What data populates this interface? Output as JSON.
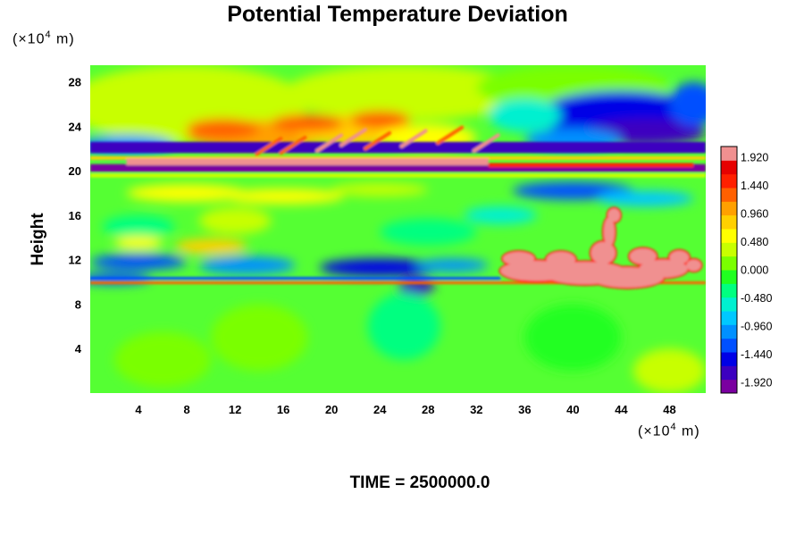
{
  "chart_data": {
    "type": "heatmap",
    "title": "Potential Temperature Deviation",
    "ylabel": "Height",
    "xlabel": "",
    "x_unit": {
      "prefix": "(×10",
      "exp": "4",
      "suffix": " m)"
    },
    "y_unit": {
      "prefix": "(×10",
      "exp": "4",
      "suffix": " m)"
    },
    "xlim": [
      0,
      51
    ],
    "ylim": [
      0,
      29.5
    ],
    "x_ticks": [
      4,
      8,
      12,
      16,
      20,
      24,
      28,
      32,
      36,
      40,
      44,
      48
    ],
    "y_ticks": [
      4,
      8,
      12,
      16,
      20,
      24,
      28
    ],
    "colorbar": {
      "range": [
        -2.1,
        2.1
      ],
      "tick_values": [
        1.92,
        1.44,
        0.96,
        0.48,
        0.0,
        -0.48,
        -0.96,
        -1.44,
        -1.92
      ],
      "tick_labels": [
        "1.920",
        "1.440",
        "0.960",
        "0.480",
        "0.000",
        "-0.480",
        "-0.960",
        "-1.440",
        "-1.920"
      ],
      "colors": [
        "#7a00a0",
        "#3c00c0",
        "#0000e6",
        "#0050ff",
        "#0090ff",
        "#00c8ff",
        "#00f0d0",
        "#00ff80",
        "#20ff20",
        "#7aff00",
        "#c8ff00",
        "#ffff00",
        "#ffd000",
        "#ffa000",
        "#ff6000",
        "#ff2000",
        "#e60000",
        "#f09090"
      ]
    },
    "features": [
      {
        "name": "upper positive band",
        "x": [
          3,
          32
        ],
        "y": [
          20.5,
          21.2
        ],
        "value": 2.0
      },
      {
        "name": "upper negative band",
        "x": [
          0,
          51
        ],
        "y": [
          19.8,
          20.5
        ],
        "value": -2.0
      },
      {
        "name": "upper warm arc",
        "x": [
          8,
          26
        ],
        "y": [
          22.5,
          25
        ],
        "value": 1.3
      },
      {
        "name": "upper-right cold lobe",
        "x": [
          36,
          51
        ],
        "y": [
          22,
          26.5
        ],
        "value": -1.6
      },
      {
        "name": "lower cold band",
        "x": [
          0,
          34
        ],
        "y": [
          10.5,
          12.5
        ],
        "value": -1.5
      },
      {
        "name": "lower-right warm plume",
        "x": [
          34,
          51
        ],
        "y": [
          9.5,
          16.5
        ],
        "value": 2.0
      }
    ]
  },
  "time_label": "TIME = 2500000.0"
}
